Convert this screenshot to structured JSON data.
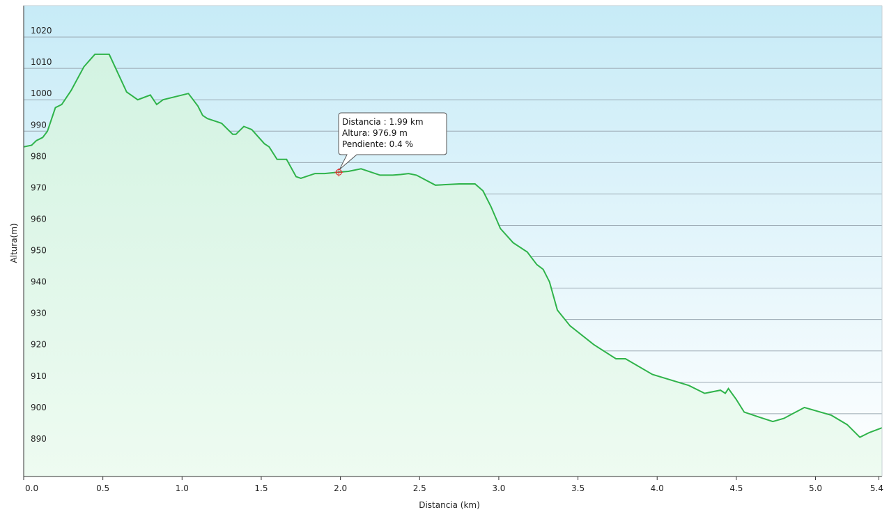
{
  "chart_data": {
    "type": "area",
    "xlabel": "Distancia  (km)",
    "ylabel": "Altura(m)",
    "xlim": [
      0,
      5.42
    ],
    "ylim": [
      880,
      1030
    ],
    "x_ticks": [
      0.0,
      0.5,
      1.0,
      1.5,
      2.0,
      2.5,
      3.0,
      3.5,
      4.0,
      4.5,
      5.0,
      5.4
    ],
    "x_tick_labels": [
      "0.0",
      "0.5",
      "1.0",
      "1.5",
      "2.0",
      "2.5",
      "3.0",
      "3.5",
      "4.0",
      "4.5",
      "5.0",
      "5.4"
    ],
    "y_ticks": [
      890,
      900,
      910,
      920,
      930,
      940,
      950,
      960,
      970,
      980,
      990,
      1000,
      1010,
      1020
    ],
    "grid": true,
    "series": [
      {
        "x": [
          0.0,
          0.05,
          0.08,
          0.12,
          0.15,
          0.2,
          0.24,
          0.3,
          0.38,
          0.45,
          0.54,
          0.65,
          0.72,
          0.8,
          0.84,
          0.88,
          1.04,
          1.1,
          1.13,
          1.16,
          1.22,
          1.25,
          1.32,
          1.34,
          1.39,
          1.44,
          1.52,
          1.55,
          1.6,
          1.66,
          1.72,
          1.75,
          1.84,
          1.9,
          2.0,
          2.05,
          2.13,
          2.25,
          2.33,
          2.38,
          2.43,
          2.48,
          2.6,
          2.75,
          2.85,
          2.9,
          2.95,
          3.01,
          3.09,
          3.18,
          3.24,
          3.28,
          3.32,
          3.37,
          3.45,
          3.6,
          3.74,
          3.8,
          3.97,
          4.2,
          4.3,
          4.4,
          4.43,
          4.45,
          4.5,
          4.55,
          4.64,
          4.73,
          4.8,
          4.93,
          5.1,
          5.2,
          5.28,
          5.34,
          5.42
        ],
        "y": [
          985,
          985.5,
          987,
          988,
          990,
          997.5,
          998.5,
          1003,
          1010.5,
          1014.5,
          1014.5,
          1002.5,
          1000,
          1001.5,
          998.5,
          1000,
          1002,
          998,
          995,
          994,
          993,
          992.5,
          989,
          989,
          991.5,
          990.5,
          986,
          985,
          981,
          981,
          975.5,
          975,
          976.5,
          976.5,
          977,
          977.2,
          978,
          976,
          976,
          976.2,
          976.5,
          976,
          972.8,
          973.2,
          973.2,
          971,
          966,
          959,
          954.5,
          951.5,
          947.5,
          946,
          942,
          933,
          928,
          922,
          917.5,
          917.5,
          912.5,
          909,
          906.5,
          907.5,
          906.5,
          908,
          904.5,
          900.5,
          899,
          897.5,
          898.5,
          902,
          899.5,
          896.5,
          892.5,
          894,
          895.5
        ]
      }
    ],
    "tooltip": {
      "x": 1.99,
      "y": 976.9,
      "lines": [
        "Distancia : 1.99 km",
        "Altura: 976.9 m",
        "Pendiente: 0.4 %"
      ]
    },
    "colors": {
      "line": "#2fb34a",
      "bg_top": "#c7ebf7",
      "bg_bottom": "#ffffff",
      "fill_top": "#d3f3e2",
      "fill_bottom": "#eefbf1",
      "grid": "#9aa8b2",
      "marker": "#e03030"
    }
  }
}
